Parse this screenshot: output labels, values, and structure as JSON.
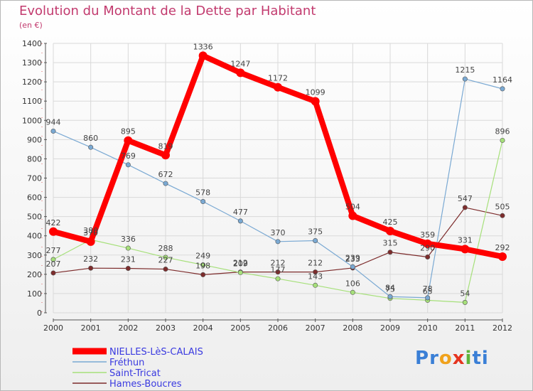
{
  "header": {
    "title": "Evolution du Montant de la Dette par Habitant",
    "unit": "(en €)"
  },
  "logo": {
    "letters": [
      "P",
      "r",
      "o",
      "x",
      "i",
      "t",
      "i"
    ],
    "colors": [
      "#3a7fd6",
      "#3a7fd6",
      "#f0a21c",
      "#e5341f",
      "#5fb53a",
      "#3a7fd6",
      "#3a7fd6"
    ]
  },
  "chart_data": {
    "type": "line",
    "x": [
      "2000",
      "2001",
      "2002",
      "2003",
      "2004",
      "2005",
      "2006",
      "2007",
      "2008",
      "2009",
      "2010",
      "2011",
      "2012"
    ],
    "ylim": [
      0,
      1400
    ],
    "yticks": [
      0,
      100,
      200,
      300,
      400,
      500,
      600,
      700,
      800,
      900,
      1000,
      1100,
      1200,
      1300,
      1400
    ],
    "grid": true,
    "legend_position": "bottom-left",
    "series": [
      {
        "name": "NIELLES-LèS-CALAIS",
        "color": "#ff0000",
        "values": [
          422,
          370,
          895,
          819,
          1336,
          1247,
          1172,
          1099,
          504,
          425,
          359,
          331,
          292
        ],
        "labels": [
          "422",
          "370",
          "895",
          "819",
          "1336",
          "1247",
          "1172",
          "1099",
          "504",
          "425",
          "359",
          "331",
          "292"
        ]
      },
      {
        "name": "Fréthun",
        "color": "#7aa9d3",
        "values": [
          944,
          860,
          769,
          672,
          578,
          477,
          370,
          375,
          239,
          84,
          78,
          1215,
          1164
        ],
        "labels": [
          "944",
          "860",
          "769",
          "672",
          "578",
          "477",
          "370",
          "375",
          "239",
          "84",
          "78",
          "1215",
          "1164"
        ]
      },
      {
        "name": "Saint-Tricat",
        "color": "#a6e07a",
        "values": [
          277,
          380,
          336,
          288,
          249,
          209,
          177,
          143,
          106,
          75,
          65,
          54,
          896
        ],
        "labels": [
          "277",
          "380",
          "336",
          "288",
          "249",
          "209",
          "177",
          "143",
          "106",
          "75",
          "65",
          "54",
          "896"
        ]
      },
      {
        "name": "Hames-Boucres",
        "color": "#7d2c2c",
        "values": [
          207,
          232,
          231,
          227,
          198,
          212,
          212,
          212,
          233,
          315,
          290,
          547,
          505
        ],
        "labels": [
          "207",
          "232",
          "231",
          "227",
          "198",
          "212",
          "212",
          "212",
          "233",
          "315",
          "290",
          "547",
          "505"
        ]
      }
    ]
  }
}
